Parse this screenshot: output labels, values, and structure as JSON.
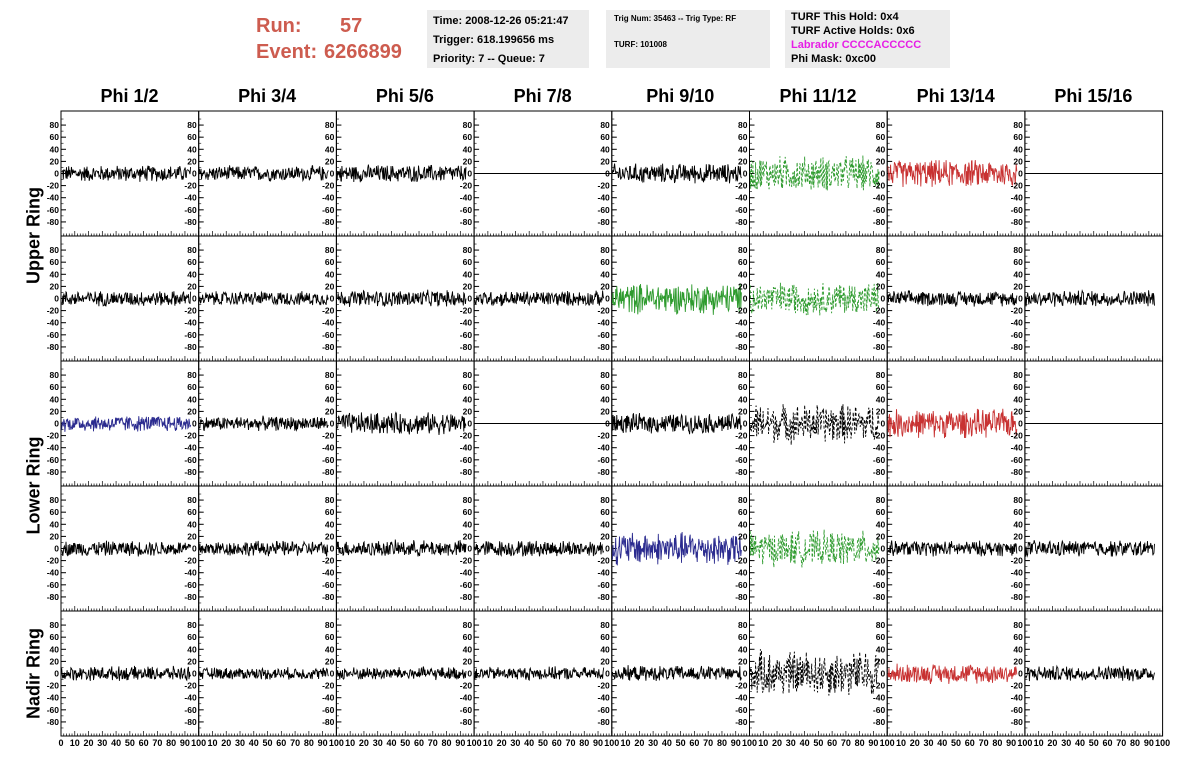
{
  "header": {
    "run_label": "Run:",
    "run_value": "57",
    "event_label": "Event:",
    "event_value": "6266899"
  },
  "info_box_1": {
    "time": "Time: 2008-12-26 05:21:47",
    "trigger": "Trigger: 618.199656 ms",
    "priority": "Priority: 7 -- Queue: 7"
  },
  "info_box_2": {
    "trig": "Trig Num: 35463 -- Trig Type: RF",
    "turf": "TURF: 101008"
  },
  "info_box_3": {
    "this_hold": "TURF This Hold: 0x4",
    "active_holds": "TURF Active Holds: 0x6",
    "labrador": "Labrador CCCCACCCCC",
    "phi_mask": "Phi Mask: 0xc00"
  },
  "colors": {
    "header_red": "#cd5c4f",
    "labrador_magenta": "#e61ee6",
    "trace_black": "#000000",
    "trace_blue": "#2b2b8f",
    "trace_green": "#2e9b2e",
    "trace_red": "#c83232",
    "box_grey": "#ececec"
  },
  "chart_data": {
    "type": "line",
    "columns": [
      "Phi 1/2",
      "Phi 3/4",
      "Phi 5/6",
      "Phi 7/8",
      "Phi 9/10",
      "Phi 11/12",
      "Phi 13/14",
      "Phi 15/16"
    ],
    "ring_labels": [
      {
        "label": "Upper Ring",
        "rows": [
          0,
          1
        ]
      },
      {
        "label": "Lower Ring",
        "rows": [
          2,
          3
        ]
      },
      {
        "label": "Nadir Ring",
        "rows": [
          4
        ]
      }
    ],
    "xlim": [
      0,
      100
    ],
    "ylim": [
      -95,
      95
    ],
    "x_tick_labels": [
      "0",
      "10",
      "20",
      "30",
      "40",
      "50",
      "60",
      "70",
      "80",
      "90",
      "100"
    ],
    "y_tick_values": [
      -80,
      -60,
      -40,
      -20,
      0,
      20,
      40,
      60,
      80
    ],
    "y_tick_labels": [
      "-80",
      "-60",
      "-40",
      "-20",
      "0",
      "20",
      "40",
      "60",
      "80"
    ],
    "traces": [
      [
        {
          "style": "black",
          "amp": 15
        },
        {
          "style": "black",
          "amp": 14
        },
        {
          "style": "black",
          "amp": 16
        },
        {
          "style": "flat",
          "amp": 0
        },
        {
          "style": "black",
          "amp": 18
        },
        {
          "style": "green-dash",
          "amp": 32
        },
        {
          "style": "red",
          "amp": 25
        },
        {
          "style": "flat",
          "amp": 0
        }
      ],
      [
        {
          "style": "black",
          "amp": 14
        },
        {
          "style": "black",
          "amp": 13
        },
        {
          "style": "black",
          "amp": 15
        },
        {
          "style": "black",
          "amp": 14
        },
        {
          "style": "green",
          "amp": 28
        },
        {
          "style": "green-dash",
          "amp": 30
        },
        {
          "style": "black",
          "amp": 14
        },
        {
          "style": "black",
          "amp": 15
        }
      ],
      [
        {
          "style": "blue",
          "amp": 15
        },
        {
          "style": "black",
          "amp": 13
        },
        {
          "style": "black",
          "amp": 20
        },
        {
          "style": "flat",
          "amp": 0
        },
        {
          "style": "black",
          "amp": 18
        },
        {
          "style": "black-dash",
          "amp": 36
        },
        {
          "style": "red",
          "amp": 26
        },
        {
          "style": "flat",
          "amp": 0
        }
      ],
      [
        {
          "style": "black",
          "amp": 14
        },
        {
          "style": "black",
          "amp": 14
        },
        {
          "style": "black",
          "amp": 15
        },
        {
          "style": "black",
          "amp": 15
        },
        {
          "style": "blue",
          "amp": 30
        },
        {
          "style": "green-dash",
          "amp": 32
        },
        {
          "style": "black",
          "amp": 14
        },
        {
          "style": "black",
          "amp": 15
        }
      ],
      [
        {
          "style": "black",
          "amp": 13
        },
        {
          "style": "black",
          "amp": 11
        },
        {
          "style": "black",
          "amp": 12
        },
        {
          "style": "black",
          "amp": 12
        },
        {
          "style": "black",
          "amp": 14
        },
        {
          "style": "black-dash",
          "amp": 42
        },
        {
          "style": "red",
          "amp": 18
        },
        {
          "style": "black",
          "amp": 14
        }
      ]
    ]
  }
}
